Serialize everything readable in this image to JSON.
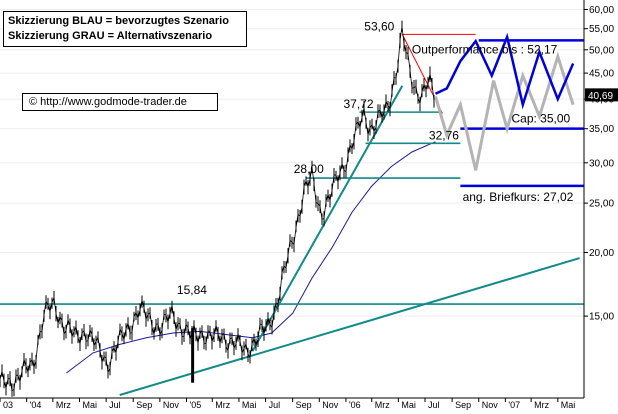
{
  "legend": {
    "line1": "Skizzierung BLAU = bevorzugtes Szenario",
    "line2": "Skizzierung GRAU = Alternativszenario"
  },
  "source": {
    "symbol": "©",
    "url": "http://www.godmode-trader.de"
  },
  "colors": {
    "price": "#000000",
    "ma": "#1a1aa0",
    "trend": "#118a8a",
    "support": "#118a8a",
    "scenario_blue": "#0000dd",
    "scenario_grey": "#b4b4b4",
    "resistance": "#ff0000",
    "axis": "#000000",
    "last_price_bg": "#000000"
  },
  "chart_data": {
    "type": "line",
    "yscale": "log",
    "ylim": [
      10.5,
      61.5
    ],
    "x_start": "2003-11",
    "x_end": "2007-06",
    "x_ticks": [
      "03",
      "'04",
      "Mrz",
      "Mai",
      "Jul",
      "Sep",
      "Nov",
      "'05",
      "Mrz",
      "Mai",
      "Jul",
      "Sep",
      "Nov",
      "'06",
      "Mrz",
      "Mai",
      "Jul",
      "Sep",
      "Nov",
      "'07",
      "Mrz",
      "Mai"
    ],
    "y_ticks": [
      15.0,
      20.0,
      25.0,
      30.0,
      35.0,
      40.0,
      45.0,
      50.0,
      55.0,
      60.0
    ],
    "y_tick_labels": [
      "15,00",
      "20,00",
      "25,00",
      "30,00",
      "35,00",
      "40,00",
      "45,00",
      "50,00",
      "55,00",
      "60,00"
    ],
    "last_price": "40,69",
    "last_value": 40.69,
    "price_series": [
      [
        "2003-11-01",
        11.0
      ],
      [
        "2003-12-15",
        11.4
      ],
      [
        "2004-01-15",
        12.1
      ],
      [
        "2004-02-10",
        15.1
      ],
      [
        "2004-03-05",
        15.8
      ],
      [
        "2004-03-25",
        14.5
      ],
      [
        "2004-04-20",
        13.6
      ],
      [
        "2004-05-15",
        14.1
      ],
      [
        "2004-06-10",
        13.0
      ],
      [
        "2004-07-05",
        12.2
      ],
      [
        "2004-07-25",
        13.0
      ],
      [
        "2004-08-20",
        14.3
      ],
      [
        "2004-09-15",
        15.4
      ],
      [
        "2004-10-10",
        14.8
      ],
      [
        "2004-11-05",
        14.2
      ],
      [
        "2004-12-01",
        15.2
      ],
      [
        "2004-12-20",
        14.3
      ],
      [
        "2005-01-10",
        13.6
      ],
      [
        "2005-02-05",
        14.0
      ],
      [
        "2005-03-01",
        13.5
      ],
      [
        "2005-03-25",
        13.8
      ],
      [
        "2005-04-20",
        13.2
      ],
      [
        "2005-05-15",
        12.9
      ],
      [
        "2005-06-10",
        13.5
      ],
      [
        "2005-07-05",
        14.3
      ],
      [
        "2005-07-25",
        15.8
      ],
      [
        "2005-08-15",
        18.5
      ],
      [
        "2005-09-05",
        22.0
      ],
      [
        "2005-09-25",
        26.0
      ],
      [
        "2005-10-15",
        28.0
      ],
      [
        "2005-11-05",
        24.0
      ],
      [
        "2005-11-25",
        25.5
      ],
      [
        "2005-12-15",
        28.5
      ],
      [
        "2006-01-05",
        31.0
      ],
      [
        "2006-01-25",
        34.0
      ],
      [
        "2006-02-10",
        37.7
      ],
      [
        "2006-03-01",
        35.0
      ],
      [
        "2006-03-20",
        36.5
      ],
      [
        "2006-04-05",
        38.5
      ],
      [
        "2006-04-25",
        45.0
      ],
      [
        "2006-05-10",
        53.6
      ],
      [
        "2006-05-25",
        46.0
      ],
      [
        "2006-06-10",
        42.0
      ],
      [
        "2006-06-25",
        40.5
      ],
      [
        "2006-07-10",
        43.0
      ],
      [
        "2006-07-25",
        40.69
      ]
    ],
    "lows": [
      [
        "2005-01-15",
        11.1
      ]
    ],
    "ma_series": [
      [
        "2004-04-01",
        11.6
      ],
      [
        "2004-06-01",
        12.7
      ],
      [
        "2004-08-01",
        13.2
      ],
      [
        "2004-10-01",
        13.6
      ],
      [
        "2004-12-01",
        13.9
      ],
      [
        "2005-02-01",
        14.0
      ],
      [
        "2005-04-01",
        13.8
      ],
      [
        "2005-06-01",
        13.6
      ],
      [
        "2005-07-15",
        13.9
      ],
      [
        "2005-09-01",
        15.2
      ],
      [
        "2005-10-15",
        17.8
      ],
      [
        "2005-12-01",
        20.5
      ],
      [
        "2006-01-15",
        24.0
      ],
      [
        "2006-03-01",
        27.0
      ],
      [
        "2006-04-15",
        29.5
      ],
      [
        "2006-06-01",
        31.5
      ],
      [
        "2006-07-25",
        33.0
      ]
    ],
    "support_levels": [
      {
        "value": 37.72,
        "label": "37,72",
        "from": "2006-02-01",
        "to": "2006-08-05"
      },
      {
        "value": 32.76,
        "label": "32,76",
        "from": "2006-02-15",
        "to": "2006-09-20"
      },
      {
        "value": 28.0,
        "label": "28,00",
        "from": "2005-10-01",
        "to": "2006-09-20"
      },
      {
        "value": 15.84,
        "label": "15,84",
        "from": "2003-11-01",
        "to": "2007-06-30"
      }
    ],
    "peak": {
      "date": "2006-05-10",
      "value": 53.6,
      "label": "53,60"
    },
    "trendlines": [
      {
        "from": [
          "2005-06-01",
          12.8
        ],
        "to": [
          "2006-05-10",
          42.5
        ]
      },
      {
        "from": [
          "2004-08-01",
          10.5
        ],
        "to": [
          "2007-06-20",
          19.5
        ]
      }
    ],
    "resistance_lines": [
      {
        "from": [
          "2006-05-10",
          53.6
        ],
        "to": [
          "2006-08-10",
          37.5
        ]
      },
      {
        "from": [
          "2006-05-10",
          53.6
        ],
        "to": [
          "2006-10-25",
          53.6
        ]
      }
    ],
    "targets": [
      {
        "value": 52.17,
        "label": "Outperformance bis : 52,17",
        "from": "2006-11-01",
        "to": "2007-06-30"
      },
      {
        "value": 35.0,
        "label": "Cap: 35,00",
        "from": "2006-09-20",
        "to": "2007-06-30"
      },
      {
        "value": 27.02,
        "label": "ang. Briefkurs: 27,02",
        "from": "2006-09-20",
        "to": "2007-06-30"
      }
    ],
    "blue_scenario": [
      [
        "2006-07-25",
        41.0
      ],
      [
        "2006-08-20",
        42.0
      ],
      [
        "2006-09-20",
        47.5
      ],
      [
        "2006-10-25",
        52.0
      ],
      [
        "2006-12-01",
        44.5
      ],
      [
        "2007-01-05",
        53.0
      ],
      [
        "2007-02-10",
        39.0
      ],
      [
        "2007-03-20",
        49.5
      ],
      [
        "2007-05-01",
        40.0
      ],
      [
        "2007-06-05",
        47.0
      ]
    ],
    "grey_scenario": [
      [
        "2006-07-25",
        40.5
      ],
      [
        "2006-08-20",
        34.0
      ],
      [
        "2006-09-20",
        39.0
      ],
      [
        "2006-10-25",
        29.0
      ],
      [
        "2006-12-05",
        43.5
      ],
      [
        "2007-01-05",
        35.0
      ],
      [
        "2007-02-10",
        44.5
      ],
      [
        "2007-03-20",
        37.0
      ],
      [
        "2007-05-01",
        48.5
      ],
      [
        "2007-06-05",
        39.0
      ]
    ]
  }
}
